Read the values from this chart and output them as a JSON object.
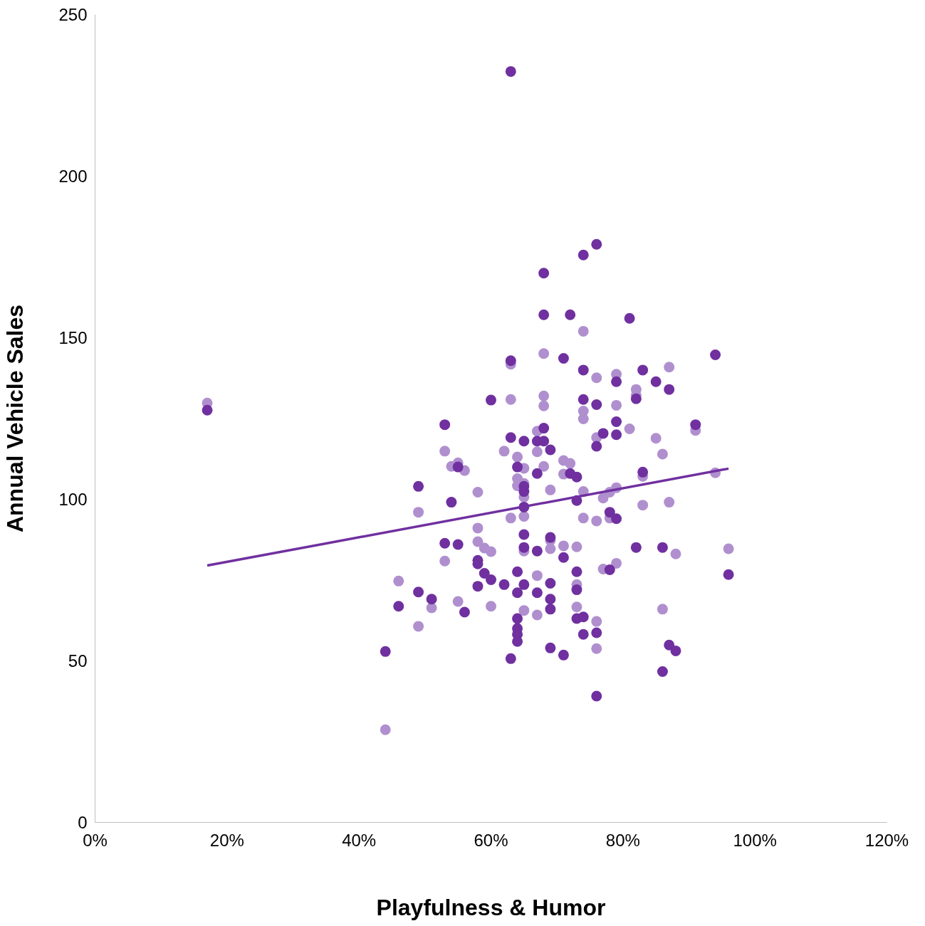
{
  "chart_data": {
    "type": "scatter",
    "xlabel": "Playfulness & Humor",
    "ylabel": "Annual Vehicle Sales",
    "xlim": [
      0,
      120
    ],
    "ylim": [
      0,
      250
    ],
    "xticks": [
      {
        "value": 0,
        "label": "0%"
      },
      {
        "value": 20,
        "label": "20%"
      },
      {
        "value": 40,
        "label": "40%"
      },
      {
        "value": 60,
        "label": "60%"
      },
      {
        "value": 80,
        "label": "80%"
      },
      {
        "value": 100,
        "label": "100%"
      },
      {
        "value": 120,
        "label": "120%"
      }
    ],
    "yticks": [
      0,
      50,
      100,
      150,
      200,
      250
    ],
    "grid": false,
    "marker": "circle",
    "series": [
      {
        "color": "#b08fcf",
        "x": [
          17,
          44,
          46,
          49,
          49,
          51,
          53,
          53,
          54,
          55,
          56,
          55,
          58,
          58,
          58,
          59,
          60,
          60,
          62,
          63,
          63,
          63,
          64,
          64,
          64,
          65,
          65,
          65,
          65,
          65,
          65,
          67,
          67,
          67,
          67,
          68,
          68,
          68,
          68,
          69,
          69,
          69,
          71,
          71,
          72,
          71,
          73,
          73,
          73,
          74,
          74,
          74,
          74,
          74,
          76,
          76,
          76,
          76,
          76,
          77,
          77,
          78,
          78,
          79,
          79,
          79,
          79,
          81,
          82,
          82,
          83,
          83,
          85,
          86,
          86,
          87,
          87,
          88,
          91,
          94,
          96
        ],
        "values": [
          129.8,
          28.7,
          74.7,
          96,
          60.7,
          66.4,
          114.9,
          80.9,
          110.2,
          111.3,
          108.9,
          68.4,
          102.2,
          91.1,
          86.9,
          84.9,
          83.8,
          66.9,
          114.9,
          141.8,
          130.9,
          94.2,
          113.1,
          106.4,
          104.2,
          109.6,
          104.9,
          100.7,
          94.7,
          84,
          65.6,
          121.1,
          114.7,
          76.4,
          64.2,
          145.1,
          132,
          128.9,
          110.2,
          102.9,
          87.3,
          84.7,
          112,
          107.8,
          111.1,
          85.6,
          85.3,
          73.6,
          66.7,
          152,
          127.3,
          124.9,
          102.4,
          94.2,
          137.6,
          119.1,
          93.3,
          62.2,
          53.8,
          100.4,
          78.4,
          102.2,
          94.2,
          138.7,
          129.1,
          103.6,
          80.2,
          121.8,
          134,
          132.2,
          107.1,
          98.2,
          118.9,
          114,
          66,
          140.9,
          99.1,
          83.1,
          121.3,
          108.2,
          84.7
        ]
      },
      {
        "color": "#7030a0",
        "x": [
          17,
          63,
          76,
          74,
          68,
          68,
          72,
          81,
          94,
          63,
          71,
          74,
          83,
          85,
          79,
          87,
          60,
          74,
          82,
          76,
          79,
          91,
          53,
          68,
          77,
          79,
          63,
          65,
          67,
          68,
          69,
          76,
          55,
          64,
          72,
          73,
          67,
          83,
          65,
          65,
          49,
          54,
          73,
          65,
          78,
          79,
          65,
          69,
          53,
          55,
          65,
          82,
          86,
          67,
          71,
          58,
          58,
          96,
          73,
          78,
          59,
          64,
          60,
          51,
          49,
          58,
          62,
          65,
          69,
          73,
          64,
          67,
          69,
          46,
          56,
          69,
          64,
          73,
          74,
          64,
          64,
          64,
          74,
          76,
          69,
          71,
          87,
          88,
          44,
          63,
          86,
          76
        ],
        "values": [
          127.6,
          232.4,
          178.9,
          175.6,
          170,
          157.1,
          157.1,
          156,
          144.7,
          142.9,
          143.6,
          140,
          140,
          136.4,
          136.4,
          134,
          130.7,
          130.9,
          131.1,
          129.3,
          124,
          123.1,
          123.1,
          122,
          120.4,
          120,
          119.1,
          118,
          118,
          118,
          115.3,
          116.4,
          110,
          110,
          108,
          106.9,
          108,
          108.4,
          104,
          102.4,
          104,
          99.1,
          99.6,
          97.6,
          96,
          94,
          89.1,
          88.2,
          86.4,
          86,
          85.1,
          85.1,
          85.1,
          84,
          82,
          81.1,
          80,
          76.7,
          77.6,
          78.2,
          77.1,
          77.6,
          75.1,
          69.1,
          71.3,
          73.1,
          73.6,
          73.6,
          74,
          72,
          71.1,
          71.1,
          69.1,
          66.9,
          65.1,
          66,
          63.1,
          63.1,
          63.6,
          60,
          58.2,
          56,
          58.2,
          58.7,
          54,
          51.8,
          54.9,
          53.1,
          52.9,
          50.7,
          46.7,
          39.1
        ]
      },
      {
        "type": "line",
        "color": "#7030a0",
        "x": [
          17,
          96
        ],
        "values": [
          79.5,
          109.5
        ],
        "marker": "none",
        "line_style": "solid"
      }
    ]
  }
}
